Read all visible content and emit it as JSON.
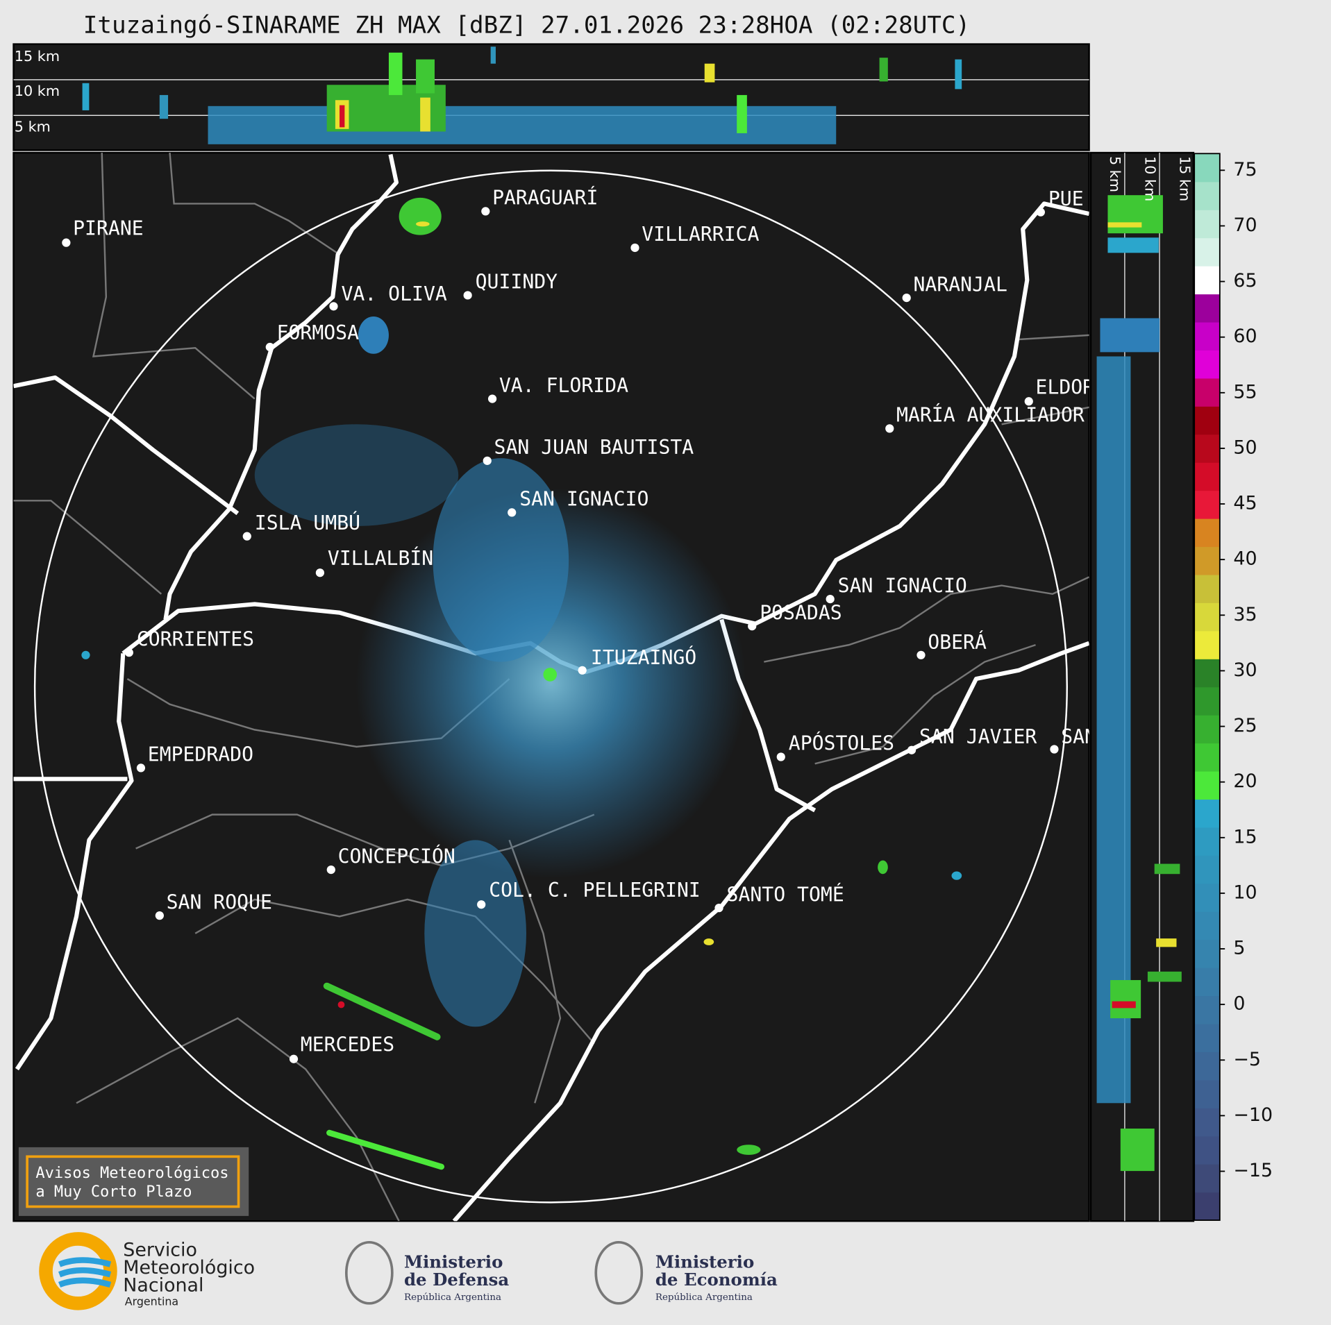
{
  "title": "Ituzaingó-SINARAME ZH MAX [dBZ] 27.01.2026 23:28HOA (02:28UTC)",
  "top_panel": {
    "labels": [
      "15 km",
      "10 km",
      "5 km"
    ]
  },
  "side_panel": {
    "labels": [
      "5 km",
      "10 km",
      "15 km"
    ]
  },
  "cities": [
    "PIRANE",
    "PARAGUARÍ",
    "VILLARRICA",
    "QUIINDY",
    "VA. OLIVA",
    "NARANJAL",
    "FORMOSA",
    "VA. FLORIDA",
    "ELDOR",
    "MARÍA AUXILIADOR",
    "SAN JUAN BAUTISTA",
    "SAN IGNACIO",
    "ISLA UMBÚ",
    "VILLALBÍN",
    "SAN IGNACIO",
    "POSADAS",
    "CORRIENTES",
    "OBERÁ",
    "ITUZAINGÓ",
    "EMPEDRADO",
    "APÓSTOLES",
    "SAN JAVIER",
    "SAN",
    "CONCEPCIÓN",
    "COL. C. PELLEGRINI",
    "SANTO TOMÉ",
    "SAN ROQUE",
    "MERCEDES",
    "PUE"
  ],
  "colorbar": {
    "range": [
      -19.4,
      76.5
    ],
    "ticks": [
      75,
      70,
      65,
      60,
      55,
      50,
      45,
      40,
      35,
      {
        "value": 30,
        "label": "30"
      },
      25,
      20,
      15,
      10,
      5,
      0,
      {
        "value": -5,
        "label": "−5"
      },
      {
        "value": -10,
        "label": "−10"
      },
      {
        "value": -15,
        "label": "−15"
      }
    ],
    "colors": [
      "#3b3f6e",
      "#3e4a78",
      "#3f5284",
      "#40598b",
      "#3e6192",
      "#3d6898",
      "#3b6f9e",
      "#3a76a3",
      "#387da9",
      "#3684ae",
      "#3489b3",
      "#328fb8",
      "#3095bc",
      "#2e9bc1",
      "#2ba6cc",
      "#4ce83a",
      "#3fc834",
      "#37b030",
      "#2f982c",
      "#2a8228",
      "#ecea3a",
      "#d8d83a",
      "#c8c038",
      "#d09a28",
      "#d88420",
      "#e81838",
      "#d40c28",
      "#b8081c",
      "#a00010",
      "#c8006a",
      "#e000d8",
      "#c800c8",
      "#9c009c",
      "#ffffff",
      "#d8f2e8",
      "#bfead8",
      "#a6e2ca",
      "#88d8bc"
    ]
  },
  "warning_box": {
    "lines": [
      "Avisos Meteorológicos",
      "a Muy Corto Plazo"
    ]
  },
  "logos": {
    "smn": [
      "Servicio",
      "Meteorológico",
      "Nacional",
      "Argentina"
    ],
    "defensa": [
      "Ministerio",
      "de Defensa",
      "República Argentina"
    ],
    "economia": [
      "Ministerio",
      "de Economía",
      "República Argentina"
    ]
  }
}
